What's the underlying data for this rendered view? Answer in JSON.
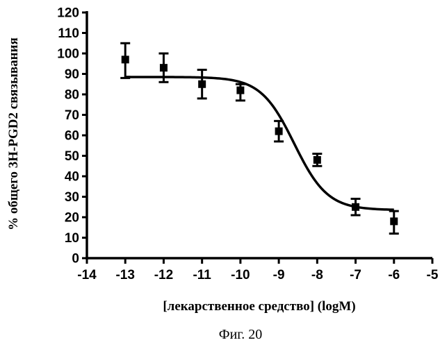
{
  "chart_data": {
    "type": "scatter",
    "xlabel": "[лекарственное средство] (logM)",
    "ylabel": "% общего 3H-PGD2 связывания",
    "caption": "Фиг. 20",
    "xlim": [
      -14,
      -5
    ],
    "ylim": [
      0,
      120
    ],
    "x_ticks": [
      -14,
      -13,
      -12,
      -11,
      -10,
      -9,
      -8,
      -7,
      -6,
      -5
    ],
    "y_ticks": [
      0,
      10,
      20,
      30,
      40,
      50,
      60,
      70,
      80,
      90,
      100,
      110,
      120
    ],
    "grid": false,
    "points": [
      {
        "x": -13,
        "y": 97,
        "err_low": 88,
        "err_high": 105
      },
      {
        "x": -12,
        "y": 93,
        "err_low": 86,
        "err_high": 100
      },
      {
        "x": -11,
        "y": 85,
        "err_low": 78,
        "err_high": 92
      },
      {
        "x": -10,
        "y": 82,
        "err_low": 77,
        "err_high": 85
      },
      {
        "x": -9,
        "y": 62,
        "err_low": 57,
        "err_high": 67
      },
      {
        "x": -8,
        "y": 48,
        "err_low": 45,
        "err_high": 51
      },
      {
        "x": -7,
        "y": 25,
        "err_low": 21,
        "err_high": 29
      },
      {
        "x": -6,
        "y": 18,
        "err_low": 12,
        "err_high": 23
      }
    ],
    "fit_curve": {
      "model": "sigmoidal",
      "top": 88.5,
      "bottom": 23.5,
      "log_ic50": -8.6,
      "hill_slope": 1.0,
      "x_range": [
        -13,
        -6
      ]
    }
  }
}
